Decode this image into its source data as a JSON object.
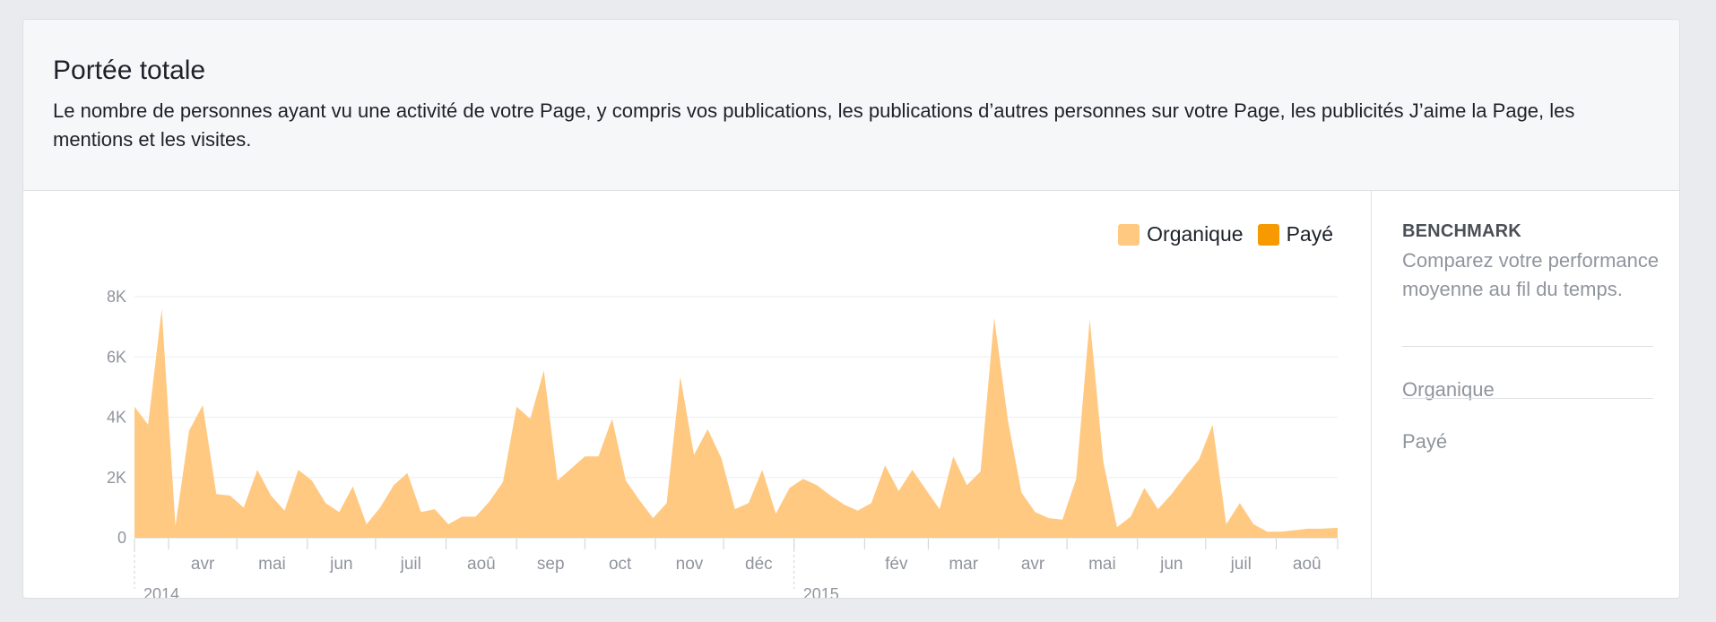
{
  "header": {
    "title": "Portée totale",
    "description": "Le nombre de personnes ayant vu une activité de votre Page, y compris vos publications, les publications d’autres personnes sur votre Page, les publicités J’aime la Page, les mentions et les visites."
  },
  "legend": {
    "items": [
      {
        "label": "Organique",
        "color": "#ffc982"
      },
      {
        "label": "Payé",
        "color": "#f79a00"
      }
    ]
  },
  "sidebar": {
    "title": "BENCHMARK",
    "description": "Comparez votre performance moyenne au fil du temps.",
    "items": [
      "Organique",
      "Payé"
    ]
  },
  "chart_data": {
    "type": "area",
    "x_start": "2014-03-17",
    "x_end": "2015-08-28",
    "ylim": [
      0,
      8000
    ],
    "yticks": [
      {
        "value": 0,
        "label": "0"
      },
      {
        "value": 2000,
        "label": "2K"
      },
      {
        "value": 4000,
        "label": "4K"
      },
      {
        "value": 6000,
        "label": "6K"
      },
      {
        "value": 8000,
        "label": "8K"
      }
    ],
    "grid": true,
    "legend_position": "top-right",
    "month_ticks": [
      {
        "date": "2014-04-01",
        "label": "avr"
      },
      {
        "date": "2014-05-01",
        "label": "mai"
      },
      {
        "date": "2014-06-01",
        "label": "jun"
      },
      {
        "date": "2014-07-01",
        "label": "juil"
      },
      {
        "date": "2014-08-01",
        "label": "aoû"
      },
      {
        "date": "2014-09-01",
        "label": "sep"
      },
      {
        "date": "2014-10-01",
        "label": "oct"
      },
      {
        "date": "2014-11-01",
        "label": "nov"
      },
      {
        "date": "2014-12-01",
        "label": "déc"
      },
      {
        "date": "2015-01-01",
        "label": ""
      },
      {
        "date": "2015-02-01",
        "label": "fév"
      },
      {
        "date": "2015-03-01",
        "label": "mar"
      },
      {
        "date": "2015-04-01",
        "label": "avr"
      },
      {
        "date": "2015-05-01",
        "label": "mai"
      },
      {
        "date": "2015-06-01",
        "label": "jun"
      },
      {
        "date": "2015-07-01",
        "label": "juil"
      },
      {
        "date": "2015-08-01",
        "label": "aoû"
      }
    ],
    "year_labels": [
      {
        "date": "2014-03-17",
        "label": "2014"
      },
      {
        "date": "2015-01-01",
        "label": "2015"
      }
    ],
    "series": [
      {
        "name": "Organique",
        "color": "#ffc982",
        "points": [
          [
            "2014-03-17",
            4350
          ],
          [
            "2014-03-23",
            3750
          ],
          [
            "2014-03-29",
            7600
          ],
          [
            "2014-04-04",
            400
          ],
          [
            "2014-04-10",
            3550
          ],
          [
            "2014-04-16",
            4400
          ],
          [
            "2014-04-22",
            1450
          ],
          [
            "2014-04-28",
            1400
          ],
          [
            "2014-05-04",
            1000
          ],
          [
            "2014-05-10",
            2250
          ],
          [
            "2014-05-16",
            1400
          ],
          [
            "2014-05-22",
            900
          ],
          [
            "2014-05-28",
            2250
          ],
          [
            "2014-06-03",
            1900
          ],
          [
            "2014-06-09",
            1150
          ],
          [
            "2014-06-15",
            850
          ],
          [
            "2014-06-21",
            1700
          ],
          [
            "2014-06-27",
            450
          ],
          [
            "2014-07-03",
            1000
          ],
          [
            "2014-07-09",
            1750
          ],
          [
            "2014-07-15",
            2150
          ],
          [
            "2014-07-21",
            850
          ],
          [
            "2014-07-27",
            950
          ],
          [
            "2014-08-02",
            450
          ],
          [
            "2014-08-08",
            700
          ],
          [
            "2014-08-14",
            700
          ],
          [
            "2014-08-20",
            1200
          ],
          [
            "2014-08-26",
            1850
          ],
          [
            "2014-09-01",
            4350
          ],
          [
            "2014-09-07",
            3950
          ],
          [
            "2014-09-13",
            5550
          ],
          [
            "2014-09-19",
            1900
          ],
          [
            "2014-09-25",
            2300
          ],
          [
            "2014-10-01",
            2700
          ],
          [
            "2014-10-07",
            2700
          ],
          [
            "2014-10-13",
            3950
          ],
          [
            "2014-10-19",
            1900
          ],
          [
            "2014-10-25",
            1250
          ],
          [
            "2014-10-31",
            650
          ],
          [
            "2014-11-06",
            1150
          ],
          [
            "2014-11-12",
            5350
          ],
          [
            "2014-11-18",
            2750
          ],
          [
            "2014-11-24",
            3600
          ],
          [
            "2014-11-30",
            2650
          ],
          [
            "2014-12-06",
            950
          ],
          [
            "2014-12-12",
            1150
          ],
          [
            "2014-12-18",
            2250
          ],
          [
            "2014-12-24",
            800
          ],
          [
            "2014-12-30",
            1650
          ],
          [
            "2015-01-05",
            1950
          ],
          [
            "2015-01-11",
            1750
          ],
          [
            "2015-01-17",
            1400
          ],
          [
            "2015-01-23",
            1100
          ],
          [
            "2015-01-29",
            900
          ],
          [
            "2015-02-04",
            1150
          ],
          [
            "2015-02-10",
            2400
          ],
          [
            "2015-02-16",
            1550
          ],
          [
            "2015-02-22",
            2250
          ],
          [
            "2015-02-28",
            1600
          ],
          [
            "2015-03-06",
            950
          ],
          [
            "2015-03-12",
            2700
          ],
          [
            "2015-03-18",
            1750
          ],
          [
            "2015-03-24",
            2200
          ],
          [
            "2015-03-30",
            7300
          ],
          [
            "2015-04-05",
            3900
          ],
          [
            "2015-04-11",
            1500
          ],
          [
            "2015-04-17",
            850
          ],
          [
            "2015-04-23",
            650
          ],
          [
            "2015-04-29",
            600
          ],
          [
            "2015-05-05",
            1950
          ],
          [
            "2015-05-11",
            7250
          ],
          [
            "2015-05-17",
            2500
          ],
          [
            "2015-05-23",
            350
          ],
          [
            "2015-05-29",
            700
          ],
          [
            "2015-06-04",
            1650
          ],
          [
            "2015-06-10",
            950
          ],
          [
            "2015-06-16",
            1450
          ],
          [
            "2015-06-22",
            2050
          ],
          [
            "2015-06-28",
            2600
          ],
          [
            "2015-07-04",
            3750
          ],
          [
            "2015-07-10",
            450
          ],
          [
            "2015-07-16",
            1150
          ],
          [
            "2015-07-22",
            450
          ],
          [
            "2015-07-28",
            200
          ],
          [
            "2015-08-03",
            200
          ],
          [
            "2015-08-09",
            250
          ],
          [
            "2015-08-15",
            300
          ],
          [
            "2015-08-21",
            300
          ],
          [
            "2015-08-28",
            330
          ]
        ]
      },
      {
        "name": "Payé",
        "color": "#f79a00",
        "points": []
      }
    ]
  }
}
